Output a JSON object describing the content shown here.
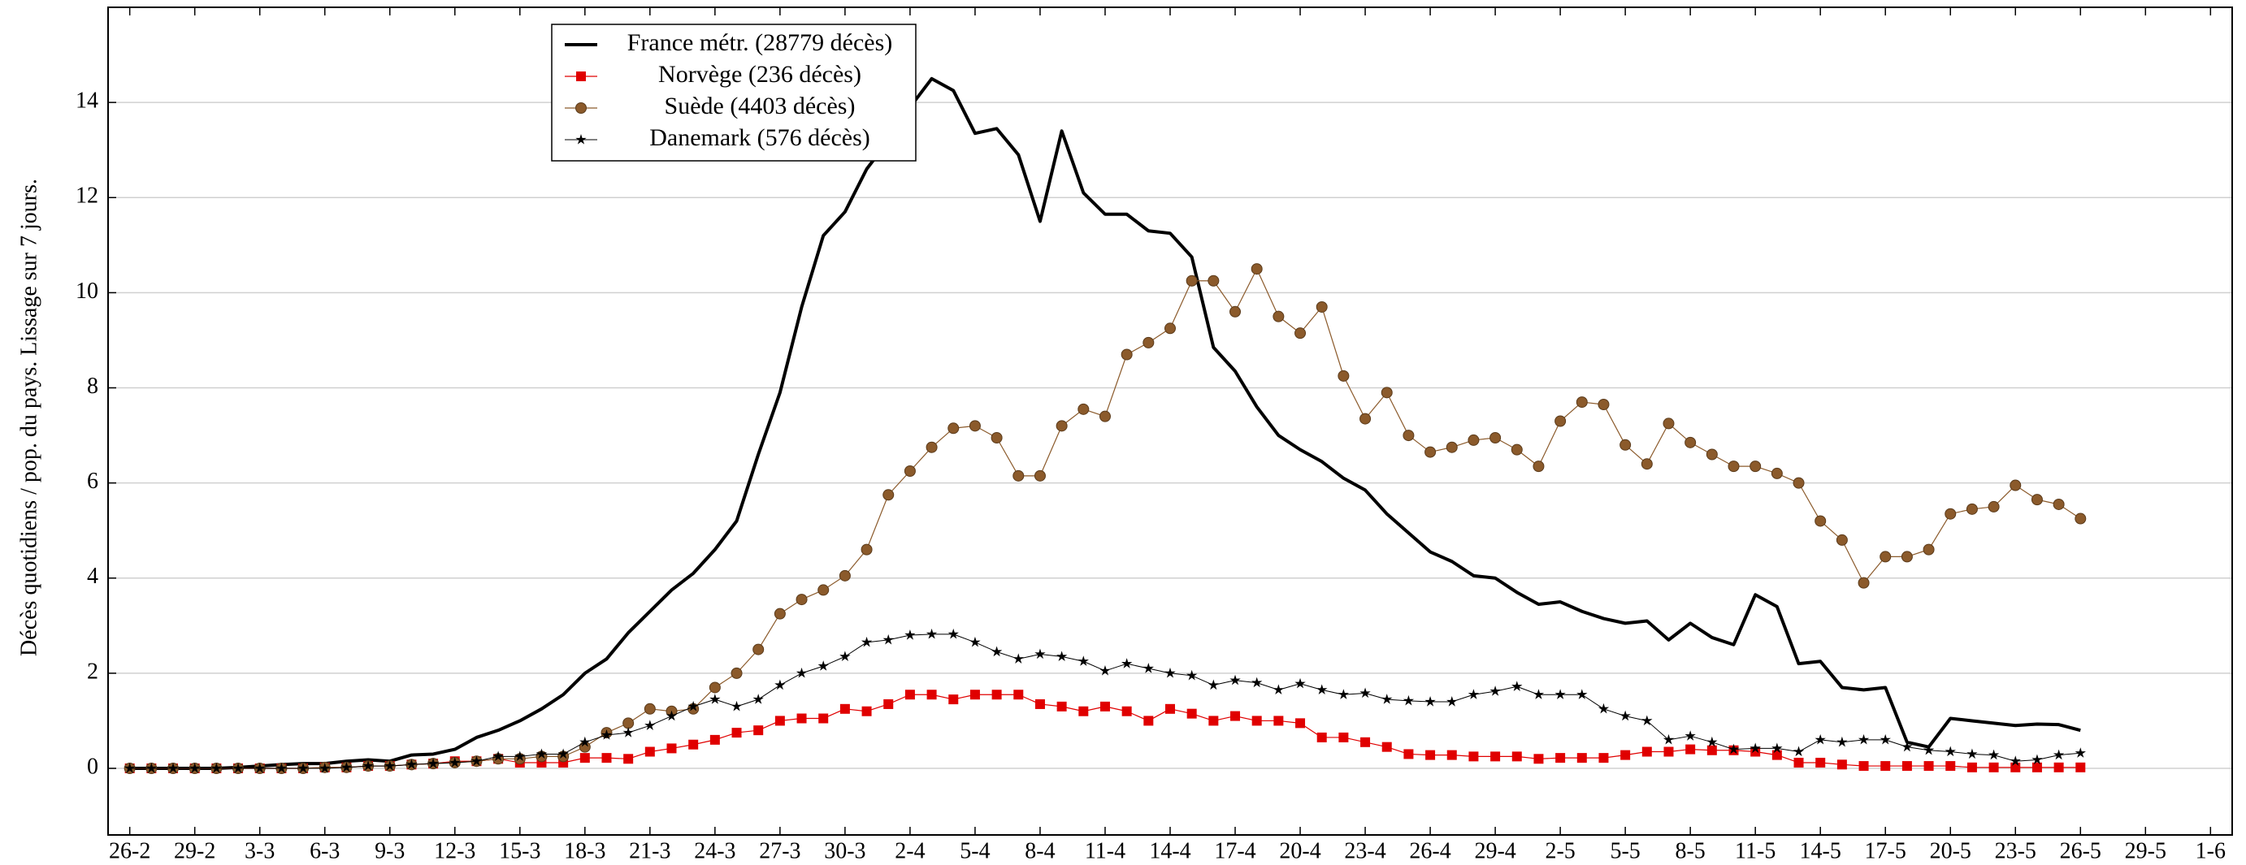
{
  "chart_data": {
    "type": "line",
    "ylabel": "Décès quotidiens / pop. du pays. Lissage sur 7 jours.",
    "x": [
      "26-2",
      "27-2",
      "28-2",
      "29-2",
      "1-3",
      "2-3",
      "3-3",
      "4-3",
      "5-3",
      "6-3",
      "7-3",
      "8-3",
      "9-3",
      "10-3",
      "11-3",
      "12-3",
      "13-3",
      "14-3",
      "15-3",
      "16-3",
      "17-3",
      "18-3",
      "19-3",
      "20-3",
      "21-3",
      "22-3",
      "23-3",
      "24-3",
      "25-3",
      "26-3",
      "27-3",
      "28-3",
      "29-3",
      "30-3",
      "31-3",
      "1-4",
      "2-4",
      "3-4",
      "4-4",
      "5-4",
      "6-4",
      "7-4",
      "8-4",
      "9-4",
      "10-4",
      "11-4",
      "12-4",
      "13-4",
      "14-4",
      "15-4",
      "16-4",
      "17-4",
      "18-4",
      "19-4",
      "20-4",
      "21-4",
      "22-4",
      "23-4",
      "24-4",
      "25-4",
      "26-4",
      "27-4",
      "28-4",
      "29-4",
      "30-4",
      "1-5",
      "2-5",
      "3-5",
      "4-5",
      "5-5",
      "6-5",
      "7-5",
      "8-5",
      "9-5",
      "10-5",
      "11-5",
      "12-5",
      "13-5",
      "14-5",
      "15-5",
      "16-5",
      "17-5",
      "18-5",
      "19-5",
      "20-5",
      "21-5",
      "22-5",
      "23-5",
      "24-5",
      "25-5",
      "26-5"
    ],
    "xlim": [
      "25-2",
      "2-6"
    ],
    "xticks": [
      "26-2",
      "29-2",
      "3-3",
      "6-3",
      "9-3",
      "12-3",
      "15-3",
      "18-3",
      "21-3",
      "24-3",
      "27-3",
      "30-3",
      "2-4",
      "5-4",
      "8-4",
      "11-4",
      "14-4",
      "17-4",
      "20-4",
      "23-4",
      "26-4",
      "29-4",
      "2-5",
      "5-5",
      "8-5",
      "11-5",
      "14-5",
      "17-5",
      "20-5",
      "23-5",
      "26-5",
      "29-5",
      "1-6"
    ],
    "ylim": [
      -1.4,
      16
    ],
    "yticks": [
      0,
      2,
      4,
      6,
      8,
      10,
      12,
      14
    ],
    "grid": true,
    "legend_loc": "upper left",
    "series": [
      {
        "name": "France métr. (28779 décès)",
        "color": "#000000",
        "marker": "none",
        "line_width": 4,
        "values": [
          0,
          0,
          0,
          0,
          0,
          0.02,
          0.05,
          0.08,
          0.1,
          0.1,
          0.15,
          0.18,
          0.15,
          0.28,
          0.3,
          0.4,
          0.65,
          0.8,
          1.0,
          1.25,
          1.55,
          2.0,
          2.3,
          2.85,
          3.3,
          3.75,
          4.1,
          4.6,
          5.2,
          6.6,
          7.9,
          9.7,
          11.2,
          11.7,
          12.6,
          13.2,
          13.9,
          14.5,
          14.25,
          13.35,
          13.45,
          12.9,
          11.5,
          13.4,
          12.1,
          11.65,
          11.65,
          11.3,
          11.25,
          10.75,
          8.85,
          8.35,
          7.6,
          7.0,
          6.7,
          6.45,
          6.1,
          5.85,
          5.35,
          4.95,
          4.55,
          4.35,
          4.05,
          4.0,
          3.7,
          3.45,
          3.5,
          3.3,
          3.15,
          3.05,
          3.1,
          2.7,
          3.05,
          2.75,
          2.6,
          3.65,
          3.4,
          2.2,
          2.25,
          1.7,
          1.65,
          1.7,
          0.55,
          0.45,
          1.05,
          1.0,
          0.95,
          0.9,
          0.93,
          0.92,
          0.8
        ]
      },
      {
        "name": "Norvège (236 décès)",
        "color": "#e00000",
        "marker": "square",
        "line_width": 1.2,
        "values": [
          0,
          0,
          0,
          0,
          0,
          0,
          0,
          0,
          0,
          0.02,
          0.02,
          0.05,
          0.05,
          0.08,
          0.1,
          0.15,
          0.15,
          0.2,
          0.12,
          0.12,
          0.12,
          0.22,
          0.22,
          0.2,
          0.35,
          0.42,
          0.5,
          0.6,
          0.75,
          0.8,
          1.0,
          1.05,
          1.05,
          1.25,
          1.2,
          1.35,
          1.55,
          1.55,
          1.45,
          1.55,
          1.55,
          1.55,
          1.35,
          1.3,
          1.2,
          1.3,
          1.2,
          1.0,
          1.25,
          1.15,
          1.0,
          1.1,
          1.0,
          1.0,
          0.95,
          0.65,
          0.65,
          0.55,
          0.45,
          0.3,
          0.28,
          0.28,
          0.25,
          0.25,
          0.25,
          0.2,
          0.22,
          0.22,
          0.22,
          0.28,
          0.35,
          0.35,
          0.4,
          0.38,
          0.38,
          0.35,
          0.28,
          0.12,
          0.12,
          0.08,
          0.05,
          0.05,
          0.05,
          0.05,
          0.05,
          0.02,
          0.02,
          0.02,
          0.02,
          0.02,
          0.02
        ]
      },
      {
        "name": "Suède (4403 décès)",
        "color": "#8b5a2b",
        "marker": "circle",
        "line_width": 1.2,
        "values": [
          0,
          0,
          0,
          0,
          0,
          0,
          0,
          0,
          0,
          0.02,
          0.02,
          0.05,
          0.05,
          0.08,
          0.1,
          0.12,
          0.15,
          0.2,
          0.2,
          0.25,
          0.25,
          0.45,
          0.75,
          0.95,
          1.25,
          1.2,
          1.25,
          1.7,
          2.0,
          2.5,
          3.25,
          3.55,
          3.75,
          4.05,
          4.6,
          5.75,
          6.25,
          6.75,
          7.15,
          7.2,
          6.95,
          6.15,
          6.15,
          7.2,
          7.55,
          7.4,
          8.7,
          8.95,
          9.25,
          10.25,
          10.25,
          9.6,
          10.5,
          9.5,
          9.15,
          9.7,
          8.25,
          7.35,
          7.9,
          7.0,
          6.65,
          6.75,
          6.9,
          6.95,
          6.7,
          6.35,
          7.3,
          7.7,
          7.65,
          6.8,
          6.4,
          7.25,
          6.85,
          6.6,
          6.35,
          6.35,
          6.2,
          6.0,
          5.2,
          4.8,
          3.9,
          4.45,
          4.45,
          4.6,
          5.35,
          5.45,
          5.5,
          5.95,
          5.65,
          5.55,
          5.25
        ]
      },
      {
        "name": "Danemark (576 décès)",
        "color": "#000000",
        "marker": "star",
        "line_width": 1,
        "values": [
          0,
          0,
          0,
          0,
          0,
          0,
          0,
          0,
          0,
          0,
          0.02,
          0.05,
          0.05,
          0.08,
          0.1,
          0.12,
          0.15,
          0.25,
          0.25,
          0.3,
          0.3,
          0.55,
          0.7,
          0.75,
          0.9,
          1.1,
          1.3,
          1.45,
          1.3,
          1.45,
          1.75,
          2.0,
          2.15,
          2.35,
          2.65,
          2.7,
          2.8,
          2.82,
          2.82,
          2.65,
          2.45,
          2.3,
          2.4,
          2.35,
          2.25,
          2.05,
          2.2,
          2.1,
          2.0,
          1.95,
          1.75,
          1.85,
          1.8,
          1.65,
          1.78,
          1.65,
          1.55,
          1.58,
          1.45,
          1.42,
          1.4,
          1.4,
          1.55,
          1.62,
          1.72,
          1.55,
          1.55,
          1.55,
          1.25,
          1.1,
          1.0,
          0.6,
          0.68,
          0.55,
          0.4,
          0.42,
          0.42,
          0.35,
          0.6,
          0.55,
          0.6,
          0.6,
          0.45,
          0.38,
          0.35,
          0.3,
          0.28,
          0.15,
          0.18,
          0.28,
          0.32
        ]
      }
    ]
  }
}
